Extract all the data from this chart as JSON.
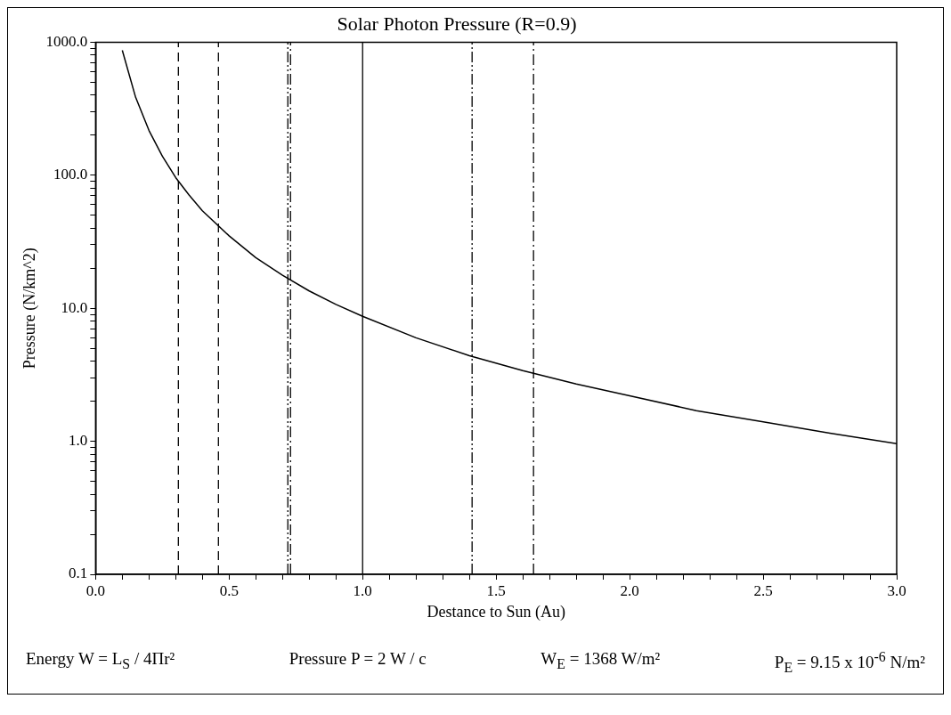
{
  "chart_data": {
    "type": "line",
    "title": "Solar Photon Pressure (R=0.9)",
    "xlabel": "Destance to Sun (Au)",
    "ylabel": "Pressure (N/km^2)",
    "log": "y",
    "grid": false,
    "legend": false,
    "marker": "none",
    "line_style": "solid",
    "xlim": [
      0,
      3
    ],
    "ylim": [
      0.1,
      1000
    ],
    "xticks": [
      {
        "value": 0,
        "label": "0.0"
      },
      {
        "value": 0.1,
        "label": null
      },
      {
        "value": 0.2,
        "label": null
      },
      {
        "value": 0.3,
        "label": null
      },
      {
        "value": 0.4,
        "label": null
      },
      {
        "value": 0.5,
        "label": "0.5"
      },
      {
        "value": 0.6,
        "label": null
      },
      {
        "value": 0.7,
        "label": null
      },
      {
        "value": 0.8,
        "label": null
      },
      {
        "value": 0.9,
        "label": null
      },
      {
        "value": 1,
        "label": "1.0"
      },
      {
        "value": 1.1,
        "label": null
      },
      {
        "value": 1.2,
        "label": null
      },
      {
        "value": 1.3,
        "label": null
      },
      {
        "value": 1.4,
        "label": null
      },
      {
        "value": 1.5,
        "label": "1.5"
      },
      {
        "value": 1.6,
        "label": null
      },
      {
        "value": 1.7,
        "label": null
      },
      {
        "value": 1.8,
        "label": null
      },
      {
        "value": 1.9,
        "label": null
      },
      {
        "value": 2,
        "label": "2.0"
      },
      {
        "value": 2.1,
        "label": null
      },
      {
        "value": 2.2,
        "label": null
      },
      {
        "value": 2.3,
        "label": null
      },
      {
        "value": 2.4,
        "label": null
      },
      {
        "value": 2.5,
        "label": "2.5"
      },
      {
        "value": 2.6,
        "label": null
      },
      {
        "value": 2.7,
        "label": null
      },
      {
        "value": 2.8,
        "label": null
      },
      {
        "value": 2.9,
        "label": null
      },
      {
        "value": 3,
        "label": "3.0"
      }
    ],
    "yticks": [
      {
        "value": 0.1,
        "label": "0.1"
      },
      {
        "value": 0.2,
        "label": null
      },
      {
        "value": 0.3,
        "label": null
      },
      {
        "value": 0.4,
        "label": null
      },
      {
        "value": 0.5,
        "label": null
      },
      {
        "value": 0.6,
        "label": null
      },
      {
        "value": 0.7,
        "label": null
      },
      {
        "value": 0.8,
        "label": null
      },
      {
        "value": 0.9,
        "label": null
      },
      {
        "value": 1,
        "label": "1.0"
      },
      {
        "value": 2,
        "label": null
      },
      {
        "value": 3,
        "label": null
      },
      {
        "value": 4,
        "label": null
      },
      {
        "value": 5,
        "label": null
      },
      {
        "value": 6,
        "label": null
      },
      {
        "value": 7,
        "label": null
      },
      {
        "value": 8,
        "label": null
      },
      {
        "value": 9,
        "label": null
      },
      {
        "value": 10,
        "label": "10.0"
      },
      {
        "value": 20,
        "label": null
      },
      {
        "value": 30,
        "label": null
      },
      {
        "value": 40,
        "label": null
      },
      {
        "value": 50,
        "label": null
      },
      {
        "value": 60,
        "label": null
      },
      {
        "value": 70,
        "label": null
      },
      {
        "value": 80,
        "label": null
      },
      {
        "value": 90,
        "label": null
      },
      {
        "value": 100,
        "label": "100.0"
      },
      {
        "value": 200,
        "label": null
      },
      {
        "value": 300,
        "label": null
      },
      {
        "value": 400,
        "label": null
      },
      {
        "value": 500,
        "label": null
      },
      {
        "value": 600,
        "label": null
      },
      {
        "value": 700,
        "label": null
      },
      {
        "value": 800,
        "label": null
      },
      {
        "value": 900,
        "label": null
      },
      {
        "value": 1000,
        "label": "1000.0"
      }
    ],
    "series": [
      {
        "color": "#000000",
        "x": [
          0.1,
          0.15,
          0.2,
          0.25,
          0.3,
          0.35,
          0.4,
          0.5,
          0.6,
          0.7,
          0.8,
          0.9,
          1.0,
          1.2,
          1.4,
          1.6,
          1.8,
          2.0,
          2.25,
          2.5,
          2.75,
          3.0
        ],
        "values": [
          870,
          385,
          217,
          139,
          96,
          71,
          54,
          35,
          24,
          17.7,
          13.5,
          10.7,
          8.7,
          6.0,
          4.4,
          3.4,
          2.7,
          2.2,
          1.7,
          1.4,
          1.15,
          0.96
        ]
      }
    ],
    "ref_lines": [
      {
        "axis": "x",
        "value": 0.31,
        "line_style": "dashed",
        "color": "#000000"
      },
      {
        "axis": "x",
        "value": 0.46,
        "line_style": "dashed",
        "color": "#000000"
      },
      {
        "axis": "x",
        "value": 0.72,
        "line_style": "dashdotdot",
        "color": "#000000"
      },
      {
        "axis": "x",
        "value": 0.73,
        "line_style": "dashdot",
        "color": "#000000"
      },
      {
        "axis": "x",
        "value": 1.0,
        "line_style": "solid",
        "color": "#000000"
      },
      {
        "axis": "x",
        "value": 1.41,
        "line_style": "dashdotdot",
        "color": "#000000"
      },
      {
        "axis": "x",
        "value": 1.64,
        "line_style": "dashdot",
        "color": "#000000"
      }
    ],
    "annotations": [
      "Energy  W = L$_{S}$ / 4Πr²",
      "Pressure  P = 2 W / c",
      "W$_{E}$ = 1368 W/m²",
      "P$_{E}$ = 9.15 x 10$^{-6}$ N/m²"
    ]
  }
}
